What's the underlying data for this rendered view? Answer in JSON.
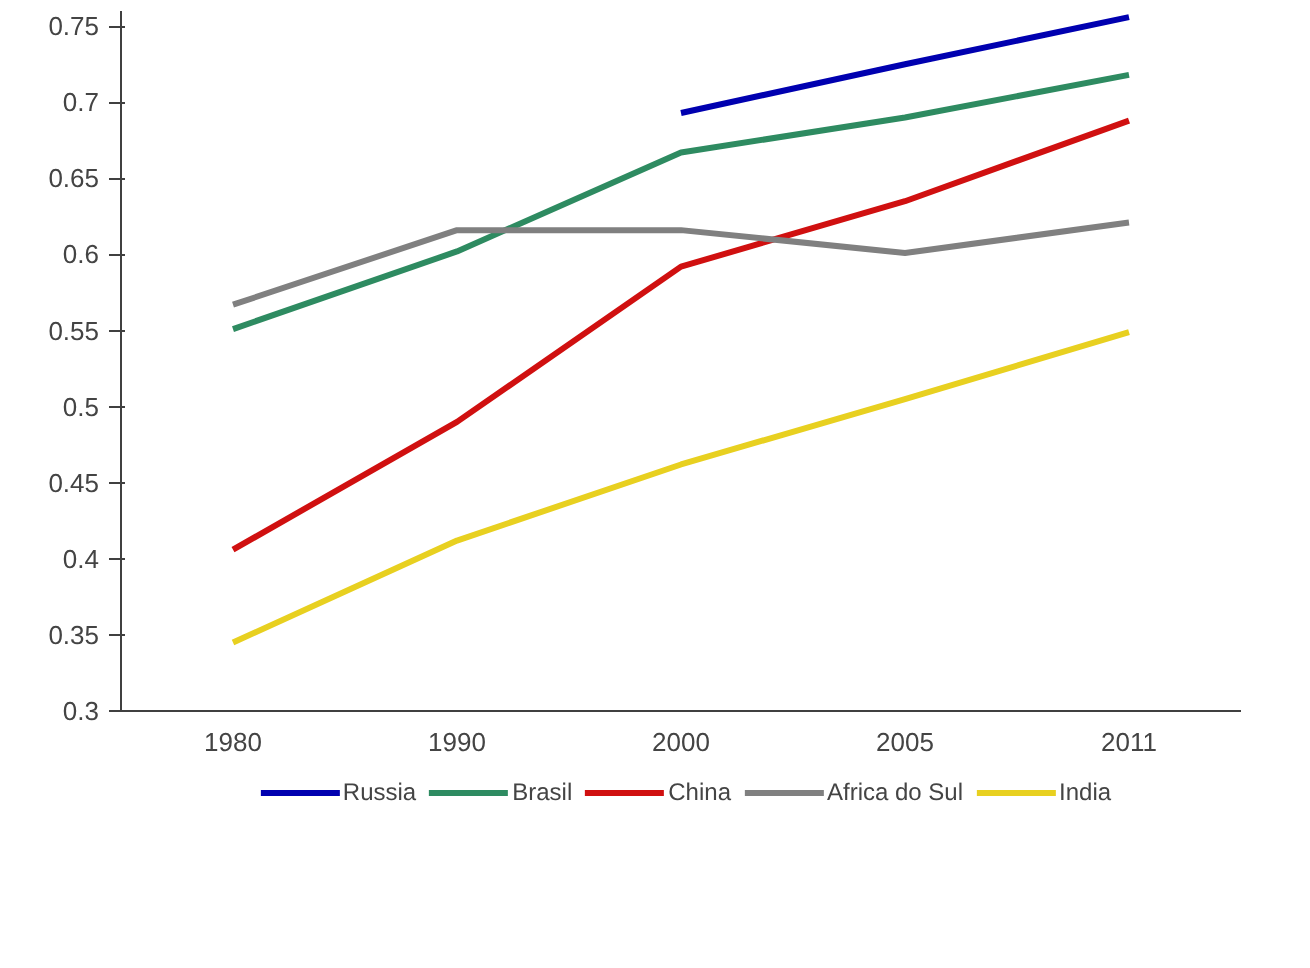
{
  "chart_data": {
    "type": "line",
    "categories": [
      "1980",
      "1990",
      "2000",
      "2005",
      "2011"
    ],
    "series": [
      {
        "name": "Russia",
        "color": "#0000b0",
        "values": [
          null,
          null,
          0.693,
          0.725,
          0.756
        ]
      },
      {
        "name": "Brasil",
        "color": "#2e8b61",
        "values": [
          0.551,
          0.602,
          0.667,
          0.69,
          0.718
        ]
      },
      {
        "name": "China",
        "color": "#d01010",
        "values": [
          0.406,
          0.49,
          0.592,
          0.635,
          0.688
        ]
      },
      {
        "name": "Africa do Sul",
        "color": "#808080",
        "values": [
          0.567,
          0.616,
          0.616,
          0.601,
          0.621
        ]
      },
      {
        "name": "India",
        "color": "#e8d020",
        "values": [
          0.345,
          0.412,
          0.462,
          0.505,
          0.549
        ]
      }
    ],
    "ylim": [
      0.3,
      0.76
    ],
    "yticks": [
      {
        "value": 0.3,
        "label": "0.3"
      },
      {
        "value": 0.35,
        "label": "0.35"
      },
      {
        "value": 0.4,
        "label": "0.4"
      },
      {
        "value": 0.45,
        "label": "0.45"
      },
      {
        "value": 0.5,
        "label": "0.5"
      },
      {
        "value": 0.55,
        "label": "0.55"
      },
      {
        "value": 0.6,
        "label": "0.6"
      },
      {
        "value": 0.65,
        "label": "0.65"
      },
      {
        "value": 0.7,
        "label": "0.7"
      },
      {
        "value": 0.75,
        "label": "0.75"
      }
    ],
    "grid": false,
    "legend": "bottom",
    "marker": "none",
    "line_style": "solid"
  }
}
